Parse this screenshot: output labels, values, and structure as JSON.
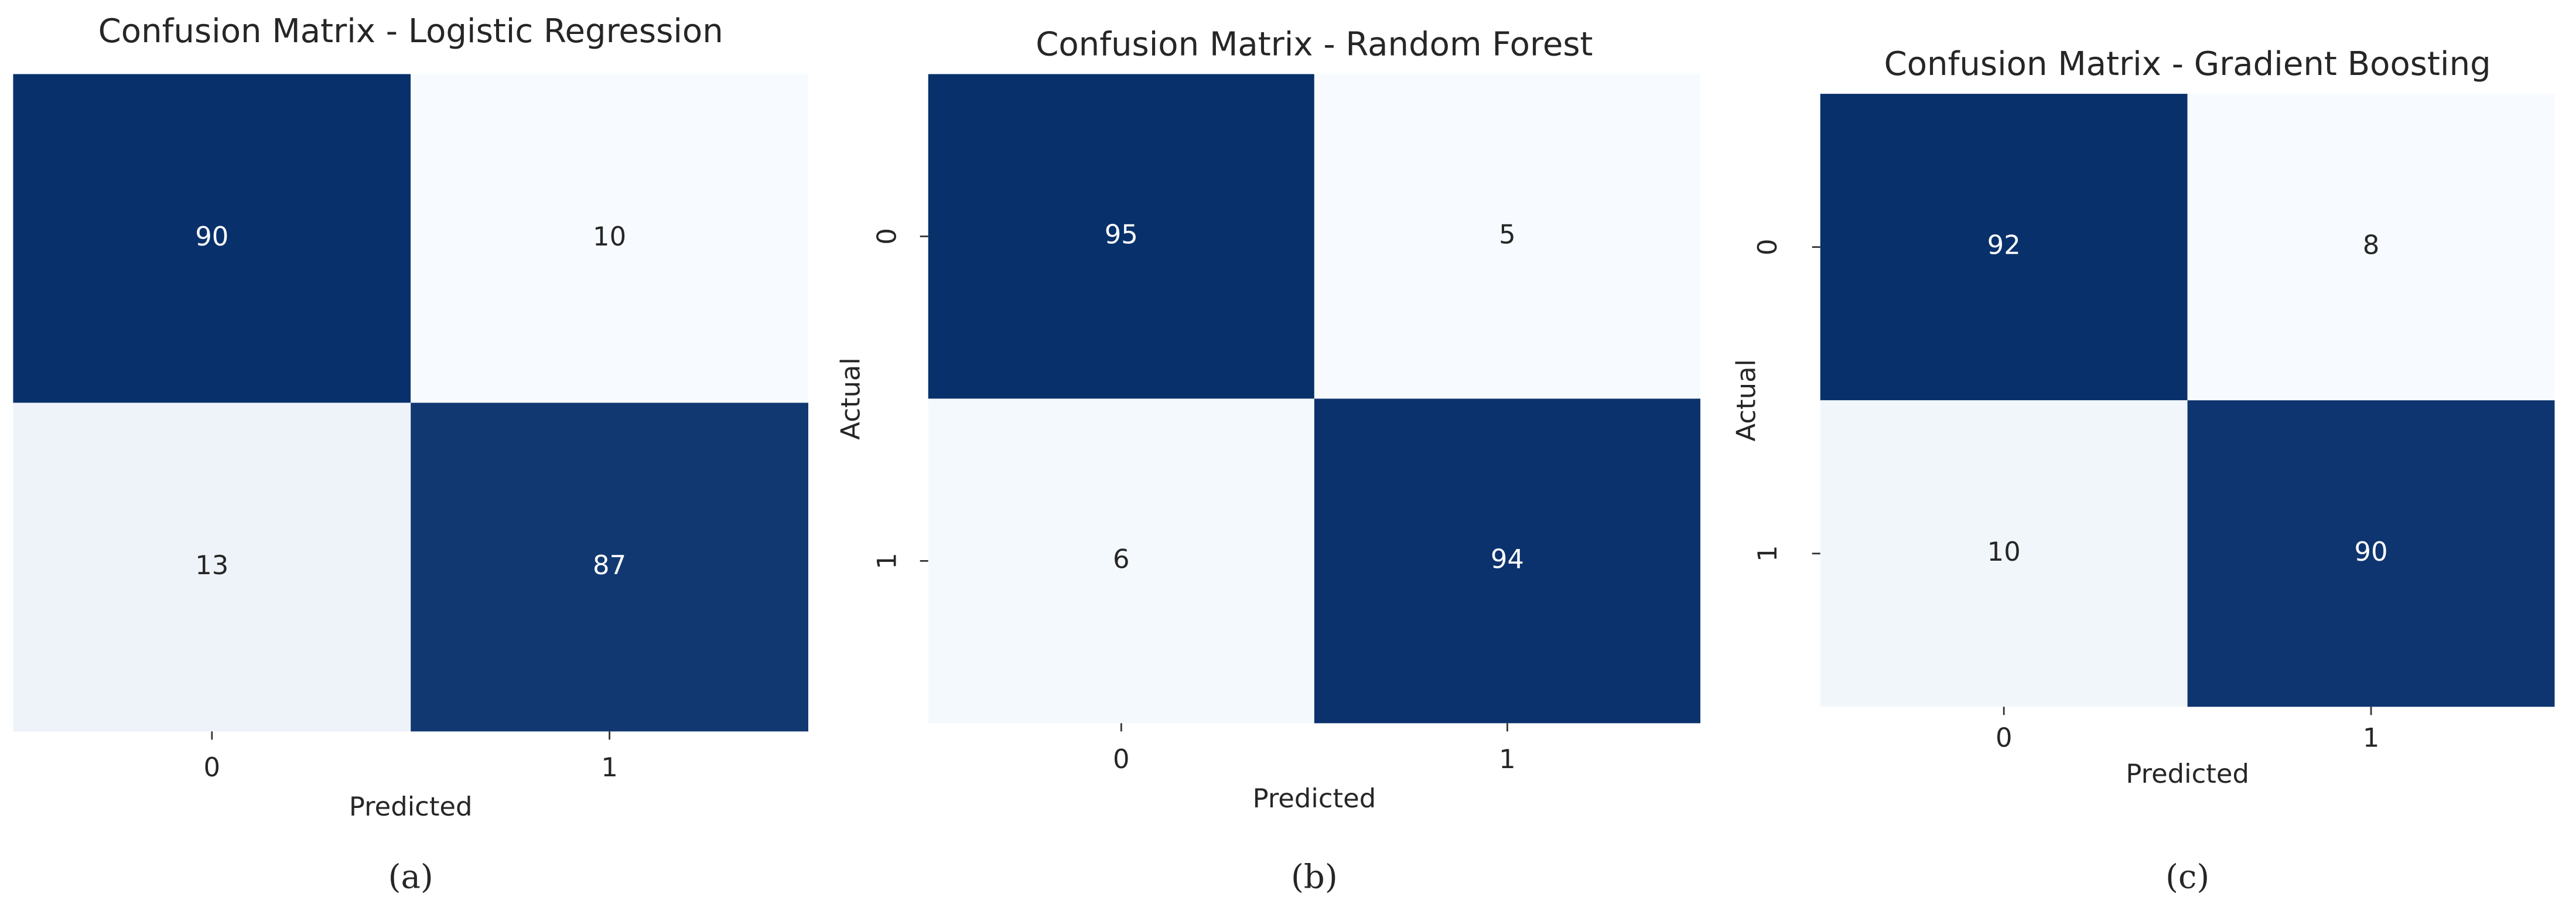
{
  "chart_data": [
    {
      "type": "heatmap",
      "title": "Confusion Matrix - Logistic Regression",
      "xlabel": "Predicted",
      "x_categories": [
        "0",
        "1"
      ],
      "values": [
        [
          90,
          10
        ],
        [
          13,
          87
        ]
      ],
      "colors": [
        "#f7fbff",
        "#08306b"
      ],
      "caption": "(a)"
    },
    {
      "type": "heatmap",
      "title": "Confusion Matrix - Random Forest",
      "xlabel": "Predicted",
      "ylabel": "Actual",
      "x_categories": [
        "0",
        "1"
      ],
      "y_categories": [
        "0",
        "1"
      ],
      "values": [
        [
          95,
          5
        ],
        [
          6,
          94
        ]
      ],
      "colors": [
        "#f7fbff",
        "#08306b"
      ],
      "caption": "(b)"
    },
    {
      "type": "heatmap",
      "title": "Confusion Matrix - Gradient Boosting",
      "xlabel": "Predicted",
      "ylabel": "Actual",
      "x_categories": [
        "0",
        "1"
      ],
      "y_categories": [
        "0",
        "1"
      ],
      "values": [
        [
          92,
          8
        ],
        [
          10,
          90
        ]
      ],
      "colors": [
        "#f7fbff",
        "#08306b"
      ],
      "caption": "(c)"
    }
  ]
}
